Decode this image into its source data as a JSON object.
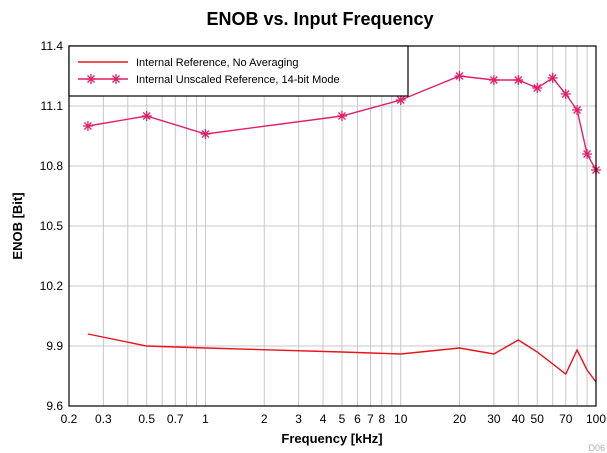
{
  "chart_data": {
    "type": "line",
    "title": "ENOB vs. Input Frequency",
    "xlabel": "Frequency [kHz]",
    "ylabel": "ENOB [Bit]",
    "xscale": "log",
    "xlim": [
      0.2,
      100
    ],
    "ylim": [
      9.6,
      11.4
    ],
    "xticks": [
      0.2,
      0.3,
      0.5,
      0.7,
      1,
      2,
      3,
      4,
      5,
      6,
      7,
      8,
      10,
      20,
      30,
      40,
      50,
      70,
      100
    ],
    "xtick_labels": [
      "0.2",
      "0.3",
      "0.5",
      "0.7",
      "1",
      "2",
      "3",
      "4",
      "5",
      "6",
      "7",
      "8",
      "10",
      "20",
      "30",
      "40",
      "50",
      "70",
      "100"
    ],
    "yticks": [
      9.6,
      9.9,
      10.2,
      10.5,
      10.8,
      11.1,
      11.4
    ],
    "ytick_labels": [
      "9.6",
      "9.9",
      "10.2",
      "10.5",
      "10.8",
      "11.1",
      "11.4"
    ],
    "grid": true,
    "legend_position": "top-left",
    "series": [
      {
        "name": "Internal Reference, No Averaging",
        "color": "#e8141e",
        "marker": "none",
        "x": [
          0.25,
          0.5,
          1,
          5,
          10,
          20,
          30,
          40,
          50,
          70,
          80,
          90,
          100
        ],
        "y": [
          9.96,
          9.9,
          9.89,
          9.87,
          9.86,
          9.89,
          9.86,
          9.93,
          9.87,
          9.76,
          9.88,
          9.78,
          9.72
        ]
      },
      {
        "name": "Internal Unscaled Reference, 14-bit Mode",
        "color": "#e0206a",
        "marker": "asterisk",
        "x": [
          0.25,
          0.5,
          1,
          5,
          10,
          20,
          30,
          40,
          50,
          60,
          70,
          80,
          90,
          100
        ],
        "y": [
          11.0,
          11.05,
          10.96,
          11.05,
          11.13,
          11.25,
          11.23,
          11.23,
          11.19,
          11.24,
          11.16,
          11.08,
          10.86,
          10.78
        ]
      }
    ]
  },
  "watermark": "D06"
}
